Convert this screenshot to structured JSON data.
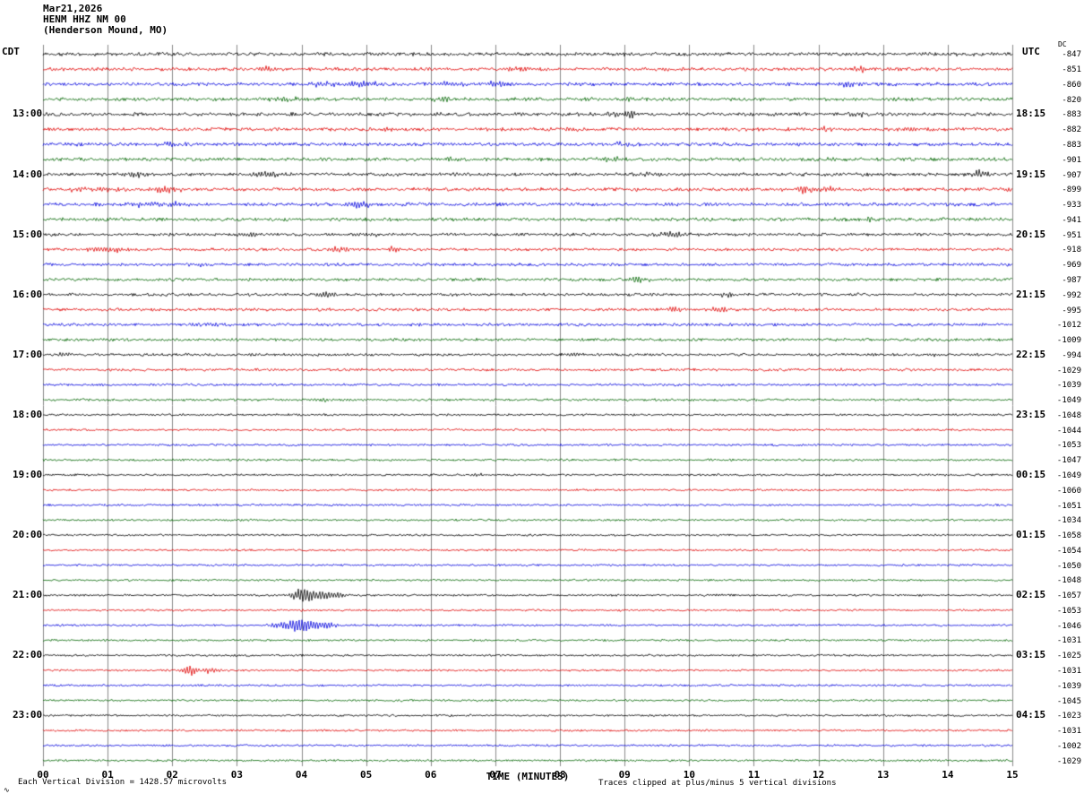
{
  "title": {
    "date": "Mar21,2026",
    "station": "HENM HHZ NM 00",
    "location": "(Henderson Mound, MO)"
  },
  "axis": {
    "left_header": "CDT",
    "right_header": "UTC",
    "dc_header": "DC",
    "x_title": "TIME (MINUTES)",
    "x_ticks": [
      "00",
      "01",
      "02",
      "03",
      "04",
      "05",
      "06",
      "07",
      "08",
      "09",
      "10",
      "11",
      "12",
      "13",
      "14",
      "15"
    ]
  },
  "footer": {
    "left": "Each Vertical Division = 1428.57 microvolts",
    "right": "Traces clipped at plus/minus 5 vertical divisions",
    "corner_mark": "∿"
  },
  "chart_data": {
    "type": "line",
    "subtype": "helicorder-seismogram",
    "x_range_minutes": [
      0,
      15
    ],
    "minutes_per_line": 15,
    "vertical_division_microvolts": 1428.57,
    "clip_note": "plus/minus 5 vertical divisions",
    "trace_color_cycle": [
      "black",
      "red",
      "blue",
      "green"
    ],
    "palette": {
      "black": "#000000",
      "red": "#e00000",
      "blue": "#0000dd",
      "green": "#006600",
      "grid": "#8a8a8a"
    },
    "rows": [
      {
        "cdt": "",
        "utc": "",
        "dc": -847,
        "c": "black",
        "n": 1.4,
        "e": [
          [
            9.0,
            2,
            0.2
          ]
        ]
      },
      {
        "cdt": "",
        "utc": "",
        "dc": -851,
        "c": "red",
        "n": 1.4,
        "e": [
          [
            3.45,
            4,
            0.12
          ],
          [
            7.3,
            2.5,
            0.2
          ],
          [
            12.65,
            3.5,
            0.12
          ],
          [
            13.15,
            2.5,
            0.1
          ]
        ]
      },
      {
        "cdt": "",
        "utc": "",
        "dc": -860,
        "c": "blue",
        "n": 1.4,
        "e": [
          [
            4.35,
            2.5,
            0.2
          ],
          [
            4.95,
            3.5,
            0.25
          ],
          [
            6.3,
            2.5,
            0.25
          ],
          [
            7.0,
            3,
            0.2
          ],
          [
            12.5,
            4,
            0.2
          ]
        ]
      },
      {
        "cdt": "",
        "utc": "",
        "dc": -820,
        "c": "green",
        "n": 1.4,
        "e": [
          [
            3.75,
            2.5,
            0.3
          ],
          [
            6.2,
            2.5,
            0.2
          ],
          [
            9.0,
            1.8,
            0.3
          ]
        ]
      },
      {
        "cdt": "13:00",
        "utc": "18:15",
        "dc": -883,
        "c": "black",
        "n": 1.4,
        "e": [
          [
            8.9,
            2.8,
            0.25
          ],
          [
            9.1,
            3.5,
            0.1
          ],
          [
            12.6,
            3,
            0.12
          ]
        ]
      },
      {
        "cdt": "",
        "utc": "",
        "dc": -882,
        "c": "red",
        "n": 1.4,
        "e": [
          [
            5.4,
            2.2,
            0.15
          ],
          [
            8.15,
            1.8,
            0.15
          ],
          [
            12.1,
            1.8,
            0.1
          ],
          [
            13.4,
            2.8,
            0.18
          ]
        ]
      },
      {
        "cdt": "",
        "utc": "",
        "dc": -883,
        "c": "blue",
        "n": 1.4,
        "e": [
          [
            2.0,
            1.8,
            0.2
          ],
          [
            9.0,
            1.6,
            0.2
          ]
        ]
      },
      {
        "cdt": "",
        "utc": "",
        "dc": -901,
        "c": "green",
        "n": 1.4,
        "e": [
          [
            6.3,
            1.8,
            0.15
          ],
          [
            8.8,
            2.5,
            0.2
          ],
          [
            12.2,
            1.8,
            0.15
          ]
        ]
      },
      {
        "cdt": "14:00",
        "utc": "19:15",
        "dc": -907,
        "c": "black",
        "n": 1.4,
        "e": [
          [
            1.45,
            3.5,
            0.2
          ],
          [
            3.5,
            3,
            0.3
          ],
          [
            9.3,
            2,
            0.3
          ],
          [
            14.5,
            5,
            0.12
          ]
        ]
      },
      {
        "cdt": "",
        "utc": "",
        "dc": -899,
        "c": "red",
        "n": 1.4,
        "e": [
          [
            0.55,
            3,
            0.2
          ],
          [
            1.0,
            2.5,
            0.3
          ],
          [
            1.9,
            3.5,
            0.25
          ],
          [
            11.8,
            4,
            0.2
          ],
          [
            12.15,
            2.5,
            0.15
          ]
        ]
      },
      {
        "cdt": "",
        "utc": "",
        "dc": -933,
        "c": "blue",
        "n": 1.4,
        "e": [
          [
            1.6,
            3.5,
            0.3
          ],
          [
            2.1,
            3,
            0.2
          ],
          [
            4.9,
            3.5,
            0.18
          ]
        ]
      },
      {
        "cdt": "",
        "utc": "",
        "dc": -941,
        "c": "green",
        "n": 1.4,
        "e": [
          [
            12.8,
            3,
            0.15
          ]
        ]
      },
      {
        "cdt": "15:00",
        "utc": "20:15",
        "dc": -951,
        "c": "black",
        "n": 1.2,
        "e": [
          [
            3.2,
            2,
            0.2
          ],
          [
            5.05,
            2.8,
            0.2
          ],
          [
            9.7,
            3,
            0.3
          ]
        ]
      },
      {
        "cdt": "",
        "utc": "",
        "dc": -918,
        "c": "red",
        "n": 1.2,
        "e": [
          [
            0.85,
            3.5,
            0.25
          ],
          [
            1.2,
            2.5,
            0.2
          ],
          [
            4.6,
            2.8,
            0.2
          ],
          [
            5.45,
            3,
            0.12
          ]
        ]
      },
      {
        "cdt": "",
        "utc": "",
        "dc": -969,
        "c": "blue",
        "n": 1.2,
        "e": [
          [
            2.5,
            1.8,
            0.2
          ]
        ]
      },
      {
        "cdt": "",
        "utc": "",
        "dc": -987,
        "c": "green",
        "n": 1.2,
        "e": [
          [
            9.2,
            3.2,
            0.18
          ]
        ]
      },
      {
        "cdt": "16:00",
        "utc": "21:15",
        "dc": -992,
        "c": "black",
        "n": 1.2,
        "e": [
          [
            4.35,
            3,
            0.2
          ],
          [
            10.6,
            3.8,
            0.12
          ]
        ]
      },
      {
        "cdt": "",
        "utc": "",
        "dc": -995,
        "c": "red",
        "n": 1.2,
        "e": [
          [
            9.75,
            2.8,
            0.15
          ],
          [
            10.5,
            3.2,
            0.15
          ]
        ]
      },
      {
        "cdt": "",
        "utc": "",
        "dc": -1012,
        "c": "blue",
        "n": 1.2,
        "e": [
          [
            2.6,
            2.2,
            0.2
          ]
        ]
      },
      {
        "cdt": "",
        "utc": "",
        "dc": -1009,
        "c": "green",
        "n": 1.2,
        "e": []
      },
      {
        "cdt": "17:00",
        "utc": "22:15",
        "dc": -994,
        "c": "black",
        "n": 1.1,
        "e": [
          [
            0.3,
            2.2,
            0.15
          ],
          [
            8.2,
            2.2,
            0.2
          ],
          [
            13.8,
            1.8,
            0.15
          ]
        ]
      },
      {
        "cdt": "",
        "utc": "",
        "dc": -1029,
        "c": "red",
        "n": 1.1,
        "e": [
          [
            12.4,
            1.8,
            0.15
          ]
        ]
      },
      {
        "cdt": "",
        "utc": "",
        "dc": -1039,
        "c": "blue",
        "n": 1.0,
        "e": []
      },
      {
        "cdt": "",
        "utc": "",
        "dc": -1049,
        "c": "green",
        "n": 1.0,
        "e": [
          [
            4.3,
            2.2,
            0.2
          ]
        ]
      },
      {
        "cdt": "18:00",
        "utc": "23:15",
        "dc": -1048,
        "c": "black",
        "n": 0.9,
        "e": []
      },
      {
        "cdt": "",
        "utc": "",
        "dc": -1044,
        "c": "red",
        "n": 0.9,
        "e": []
      },
      {
        "cdt": "",
        "utc": "",
        "dc": -1053,
        "c": "blue",
        "n": 0.9,
        "e": []
      },
      {
        "cdt": "",
        "utc": "",
        "dc": -1047,
        "c": "green",
        "n": 0.9,
        "e": []
      },
      {
        "cdt": "19:00",
        "utc": "00:15",
        "dc": -1049,
        "c": "black",
        "n": 0.9,
        "e": [
          [
            6.7,
            1.6,
            0.2
          ]
        ]
      },
      {
        "cdt": "",
        "utc": "",
        "dc": -1060,
        "c": "red",
        "n": 0.85,
        "e": []
      },
      {
        "cdt": "",
        "utc": "",
        "dc": -1051,
        "c": "blue",
        "n": 0.85,
        "e": []
      },
      {
        "cdt": "",
        "utc": "",
        "dc": -1034,
        "c": "green",
        "n": 0.85,
        "e": []
      },
      {
        "cdt": "20:00",
        "utc": "01:15",
        "dc": -1058,
        "c": "black",
        "n": 0.85,
        "e": []
      },
      {
        "cdt": "",
        "utc": "",
        "dc": -1054,
        "c": "red",
        "n": 0.85,
        "e": []
      },
      {
        "cdt": "",
        "utc": "",
        "dc": -1050,
        "c": "blue",
        "n": 0.85,
        "e": []
      },
      {
        "cdt": "",
        "utc": "",
        "dc": -1048,
        "c": "green",
        "n": 0.85,
        "e": []
      },
      {
        "cdt": "21:00",
        "utc": "02:15",
        "dc": -1057,
        "c": "black",
        "n": 0.85,
        "e": [
          [
            4.05,
            9,
            0.18
          ],
          [
            4.35,
            5,
            0.3
          ]
        ]
      },
      {
        "cdt": "",
        "utc": "",
        "dc": -1053,
        "c": "red",
        "n": 0.85,
        "e": []
      },
      {
        "cdt": "",
        "utc": "",
        "dc": -1046,
        "c": "blue",
        "n": 0.85,
        "e": [
          [
            3.6,
            2.5,
            0.15
          ],
          [
            3.95,
            8,
            0.22
          ],
          [
            4.3,
            4,
            0.3
          ]
        ]
      },
      {
        "cdt": "",
        "utc": "",
        "dc": -1031,
        "c": "green",
        "n": 0.85,
        "e": []
      },
      {
        "cdt": "22:00",
        "utc": "03:15",
        "dc": -1025,
        "c": "black",
        "n": 0.85,
        "e": []
      },
      {
        "cdt": "",
        "utc": "",
        "dc": -1031,
        "c": "red",
        "n": 0.85,
        "e": [
          [
            2.3,
            7,
            0.15
          ],
          [
            2.55,
            3,
            0.25
          ]
        ]
      },
      {
        "cdt": "",
        "utc": "",
        "dc": -1039,
        "c": "blue",
        "n": 0.85,
        "e": []
      },
      {
        "cdt": "",
        "utc": "",
        "dc": -1045,
        "c": "green",
        "n": 0.85,
        "e": []
      },
      {
        "cdt": "23:00",
        "utc": "04:15",
        "dc": -1023,
        "c": "black",
        "n": 0.85,
        "e": []
      },
      {
        "cdt": "",
        "utc": "",
        "dc": -1031,
        "c": "red",
        "n": 0.85,
        "e": []
      },
      {
        "cdt": "",
        "utc": "",
        "dc": -1002,
        "c": "blue",
        "n": 0.85,
        "e": []
      },
      {
        "cdt": "",
        "utc": "",
        "dc": -1029,
        "c": "green",
        "n": 0.85,
        "e": []
      }
    ]
  }
}
